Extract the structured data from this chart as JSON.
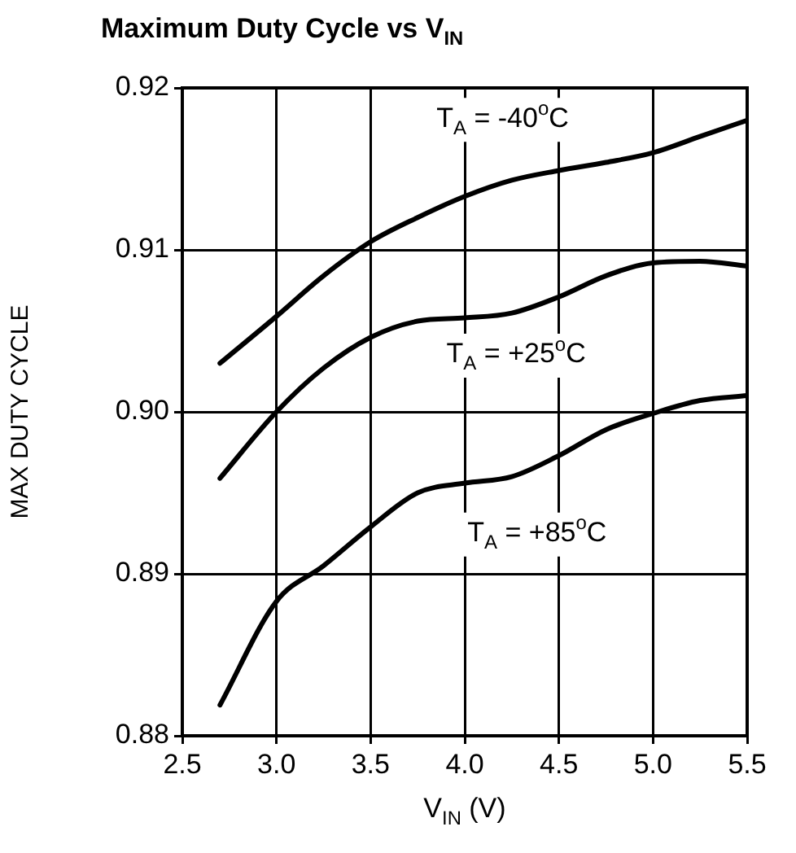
{
  "chart_data": {
    "type": "line",
    "title": "Maximum Duty Cycle vs V$_{IN}$",
    "xlabel": "V$_{IN}$ (V)",
    "ylabel": "MAX DUTY CYCLE",
    "xlim": [
      2.5,
      5.5
    ],
    "xticks": [
      {
        "value": 2.5,
        "label": "2.5"
      },
      {
        "value": 3,
        "label": "3.0"
      },
      {
        "value": 3.5,
        "label": "3.5"
      },
      {
        "value": 4,
        "label": "4.0"
      },
      {
        "value": 4.5,
        "label": "4.5"
      },
      {
        "value": 5,
        "label": "5.0"
      },
      {
        "value": 5.5,
        "label": "5.5"
      }
    ],
    "ylim": [
      0.88,
      0.92
    ],
    "yticks": [
      {
        "value": 0.88,
        "label": "0.88"
      },
      {
        "value": 0.89,
        "label": "0.89"
      },
      {
        "value": 0.9,
        "label": "0.90"
      },
      {
        "value": 0.91,
        "label": "0.91"
      },
      {
        "value": 0.92,
        "label": "0.92"
      }
    ],
    "x": [
      2.7,
      3.0,
      3.25,
      3.5,
      3.75,
      4.0,
      4.25,
      4.5,
      4.75,
      5.0,
      5.25,
      5.5
    ],
    "series": [
      {
        "color": "#000000",
        "values": [
          0.903,
          0.9059,
          0.9084,
          0.9105,
          0.912,
          0.9133,
          0.9143,
          0.9149,
          0.9154,
          0.916,
          0.917,
          0.918
        ]
      },
      {
        "color": "#000000",
        "values": [
          0.8959,
          0.9,
          0.9027,
          0.9046,
          0.9056,
          0.9058,
          0.9061,
          0.9071,
          0.9084,
          0.9092,
          0.9093,
          0.909
        ]
      },
      {
        "color": "#000000",
        "values": [
          0.8819,
          0.8883,
          0.8905,
          0.8929,
          0.895,
          0.8956,
          0.896,
          0.8973,
          0.8989,
          0.8999,
          0.9007,
          0.901
        ]
      }
    ],
    "annotations": [
      "T$_{A}$ = -40$^{o}$C",
      "T$_{A}$ = +25$^{o}$C",
      "T$_{A}$ = +85$^{o}$C"
    ],
    "grid": true,
    "legend": false,
    "marker": "none",
    "line_style": "solid"
  }
}
